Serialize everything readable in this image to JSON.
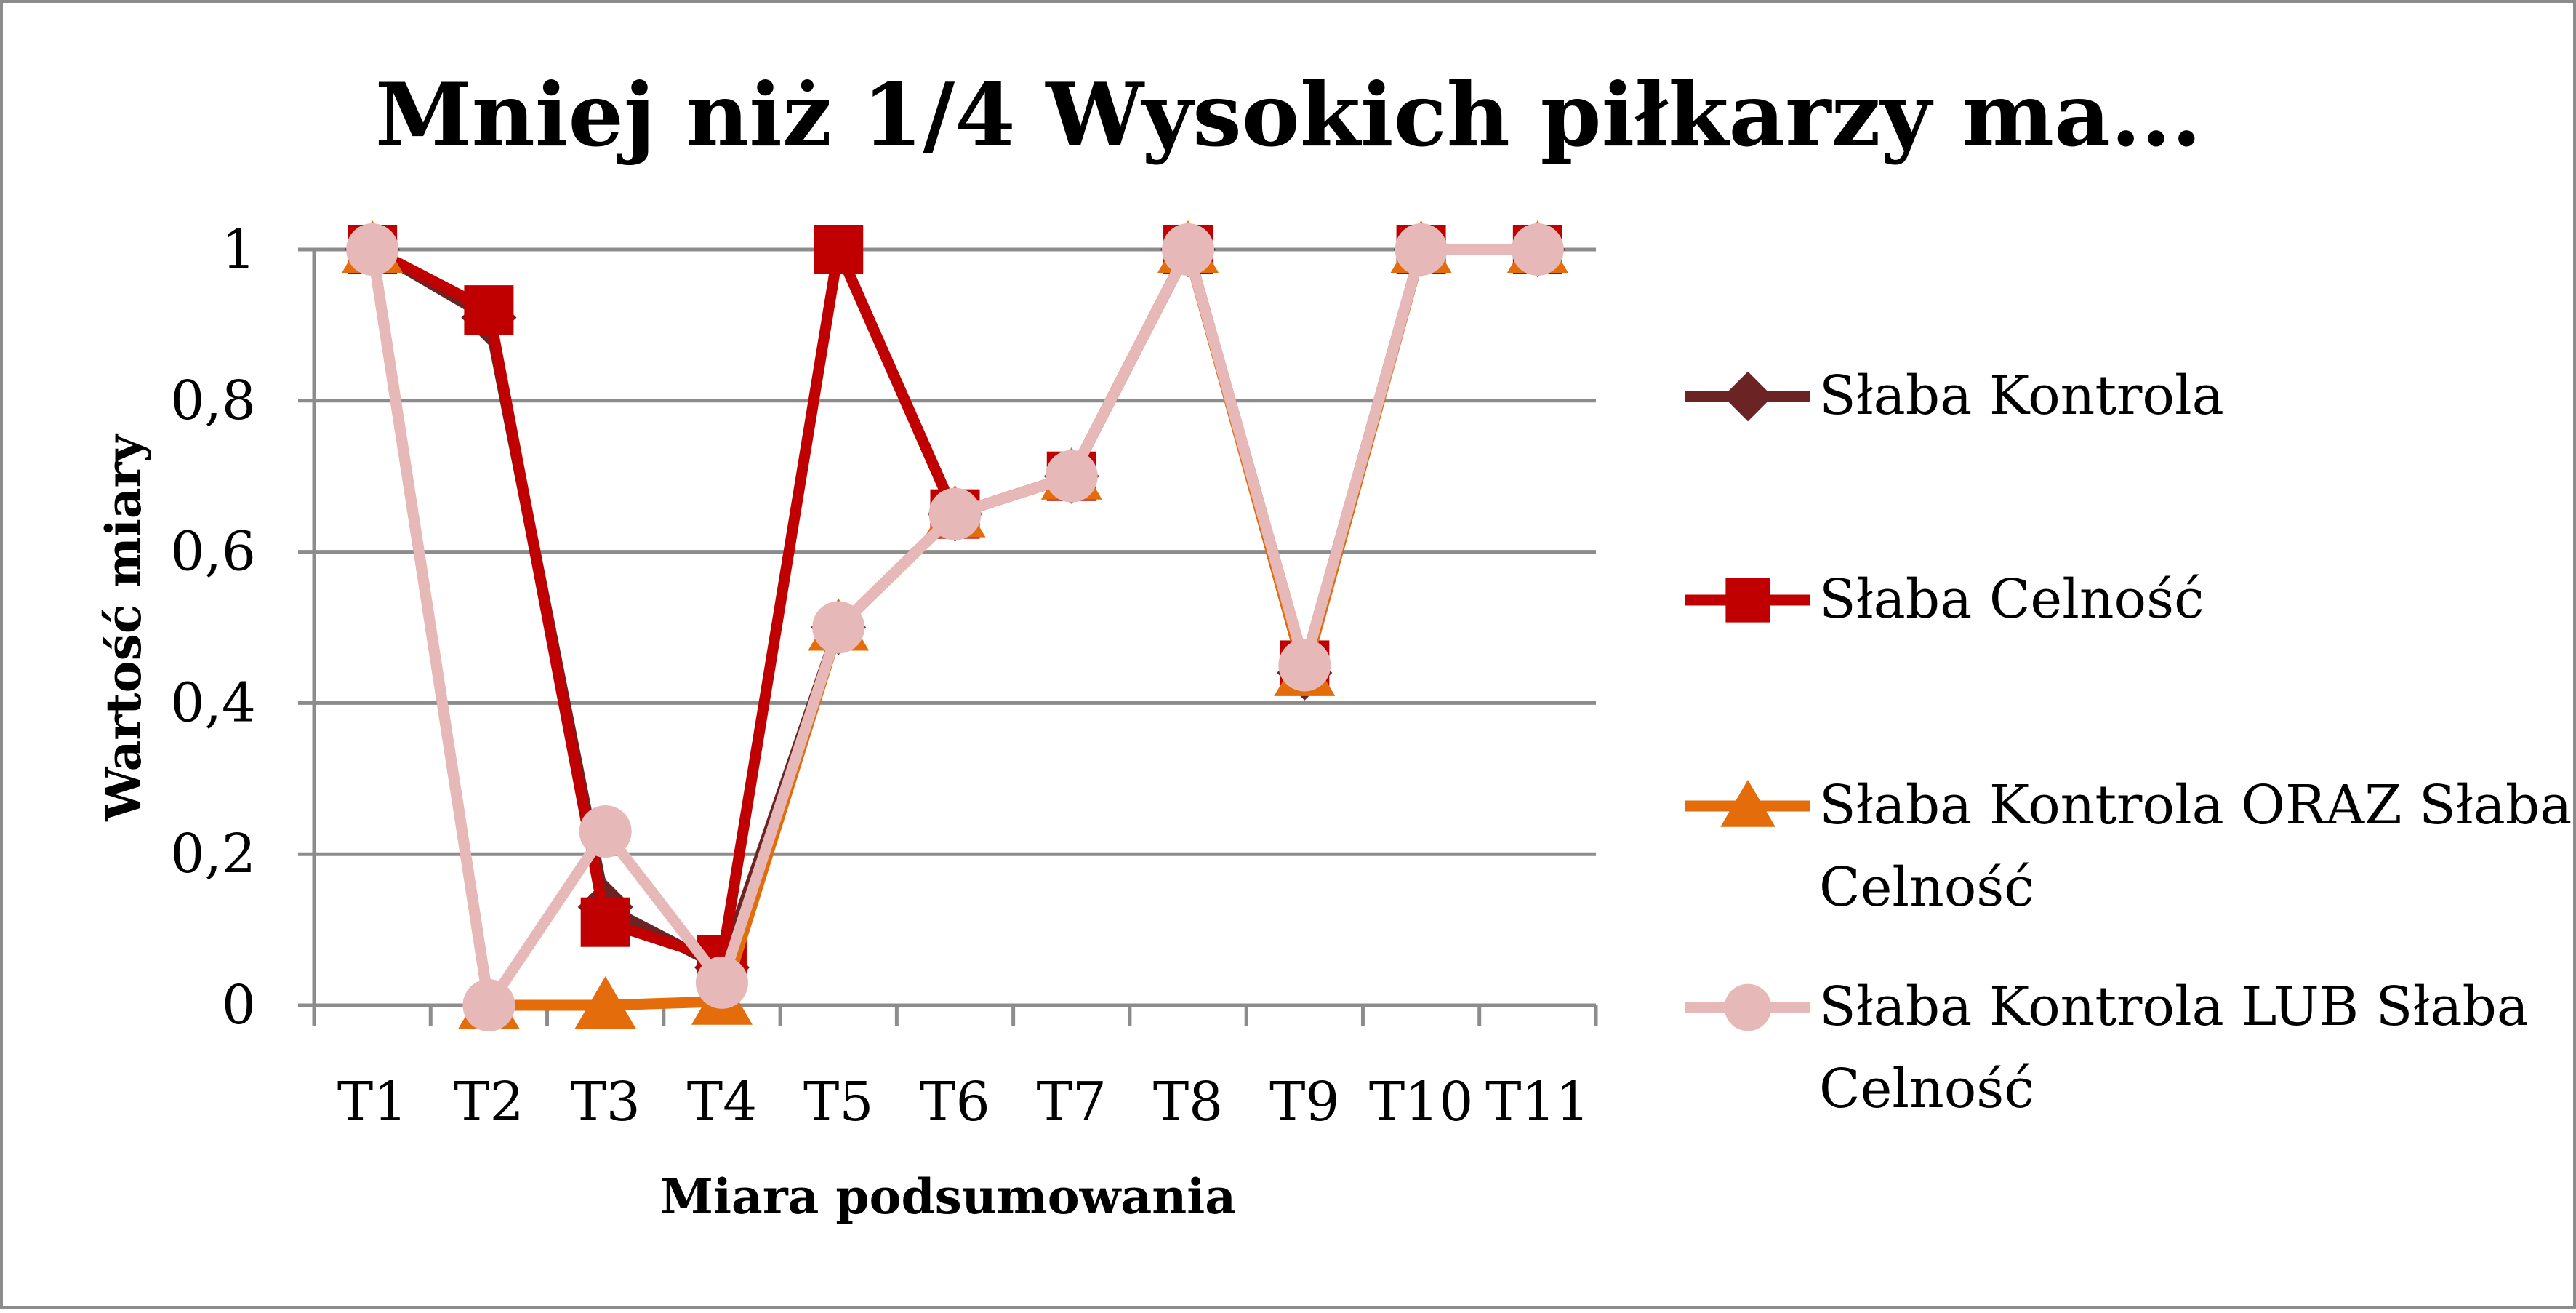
{
  "chart_data": {
    "type": "line",
    "title": "Mniej niż 1/4 Wysokich piłkarzy ma...",
    "xlabel": "Miara podsumowania",
    "ylabel": "Wartość miary",
    "categories": [
      "T1",
      "T2",
      "T3",
      "T4",
      "T5",
      "T6",
      "T7",
      "T8",
      "T9",
      "T10",
      "T11"
    ],
    "ylim": [
      0,
      1
    ],
    "yticks": [
      0,
      0.2,
      0.4,
      0.6,
      0.8,
      1
    ],
    "ytick_labels": [
      "0",
      "0,2",
      "0,4",
      "0,6",
      "0,8",
      "1"
    ],
    "grid": "horizontal",
    "legend_position": "right",
    "series": [
      {
        "name": "Słaba Kontrola",
        "color": "#6b2423",
        "marker": "diamond",
        "values": [
          1,
          0.91,
          0.13,
          0.05,
          0.5,
          0.65,
          0.7,
          1,
          0.44,
          1,
          1
        ]
      },
      {
        "name": "Słaba Celność",
        "color": "#c00000",
        "marker": "square",
        "values": [
          1,
          0.92,
          0.11,
          0.06,
          1,
          0.65,
          0.7,
          1,
          0.45,
          1,
          1
        ]
      },
      {
        "name": "Słaba Kontrola ORAZ Słaba Celność",
        "color": "#e46c0a",
        "marker": "triangle",
        "values": [
          1,
          0,
          0,
          0.005,
          0.5,
          0.65,
          0.7,
          1,
          0.44,
          1,
          1
        ]
      },
      {
        "name": "Słaba Kontrola LUB Słaba Celność",
        "color": "#e6b9b8",
        "marker": "circle",
        "values": [
          1,
          0,
          0.23,
          0.03,
          0.5,
          0.65,
          0.7,
          1,
          0.45,
          1,
          1
        ]
      }
    ]
  }
}
